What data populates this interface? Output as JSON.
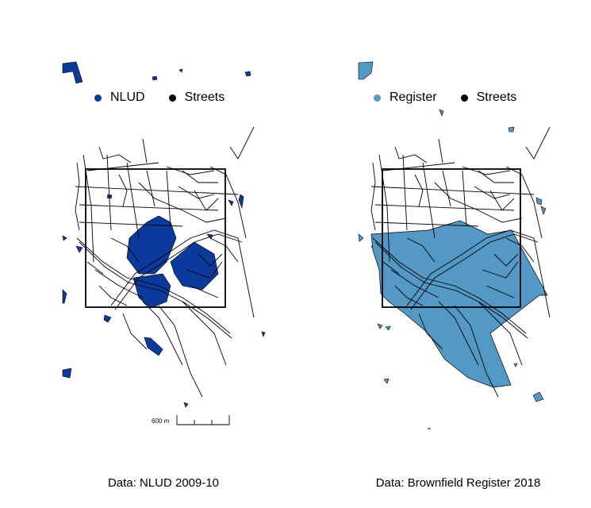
{
  "colors": {
    "nlud": "#0b3a9c",
    "register": "#5498c6",
    "streets": "#000000",
    "boundary": "#000000"
  },
  "left_panel": {
    "legend": [
      {
        "label": "NLUD",
        "color": "#0b3a9c"
      },
      {
        "label": "Streets",
        "color": "#000000"
      }
    ],
    "scalebar_label": "600 m",
    "caption": "Data: NLUD 2009-10"
  },
  "right_panel": {
    "legend": [
      {
        "label": "Register",
        "color": "#5498c6"
      },
      {
        "label": "Streets",
        "color": "#000000"
      }
    ],
    "caption": "Data: Brownfield Register 2018"
  }
}
